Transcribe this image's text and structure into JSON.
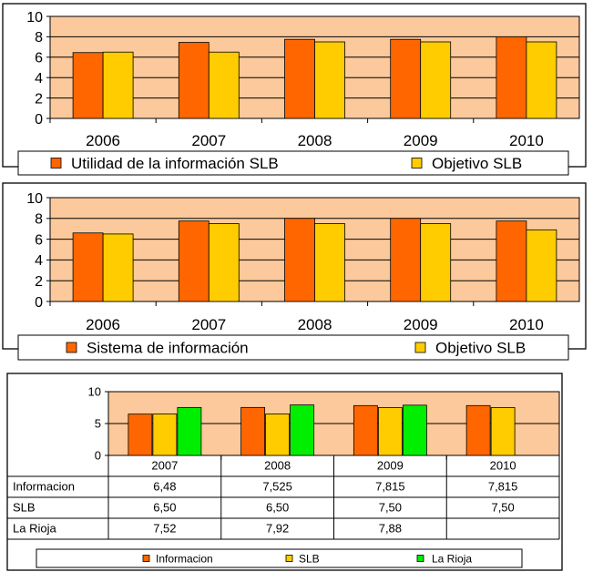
{
  "colors": {
    "plot_bg": "#fbc99b",
    "primary": "#ff6600",
    "secondary": "#ffcc00",
    "tertiary": "#00ee00",
    "grid": "#000000"
  },
  "chart_data": [
    {
      "type": "bar",
      "categories": [
        "2006",
        "2007",
        "2008",
        "2009",
        "2010"
      ],
      "series": [
        {
          "name": "Utilidad de la información SLB",
          "color": "#ff6600",
          "values": [
            6.45,
            7.45,
            7.75,
            7.75,
            8.0
          ]
        },
        {
          "name": "Objetivo SLB",
          "color": "#ffcc00",
          "values": [
            6.5,
            6.5,
            7.5,
            7.5,
            7.5
          ]
        }
      ],
      "yticks": [
        "0",
        "2",
        "4",
        "6",
        "8",
        "10"
      ],
      "ylim": [
        0,
        10
      ],
      "grid": true,
      "legend": "bottom"
    },
    {
      "type": "bar",
      "categories": [
        "2006",
        "2007",
        "2008",
        "2009",
        "2010"
      ],
      "series": [
        {
          "name": "Sistema de información",
          "color": "#ff6600",
          "values": [
            6.6,
            7.75,
            8.0,
            8.0,
            7.75
          ]
        },
        {
          "name": "Objetivo SLB",
          "color": "#ffcc00",
          "values": [
            6.5,
            7.5,
            7.5,
            7.5,
            6.9
          ]
        }
      ],
      "yticks": [
        "0",
        "2",
        "4",
        "6",
        "8",
        "10"
      ],
      "ylim": [
        0,
        10
      ],
      "grid": true,
      "legend": "bottom"
    },
    {
      "type": "bar",
      "categories": [
        "2007",
        "2008",
        "2009",
        "2010"
      ],
      "series": [
        {
          "name": "Informacion",
          "color": "#ff6600",
          "values": [
            6.48,
            7.525,
            7.815,
            7.815
          ],
          "labels": [
            "6,48",
            "7,525",
            "7,815",
            "7,815"
          ]
        },
        {
          "name": "SLB",
          "color": "#ffcc00",
          "values": [
            6.5,
            6.5,
            7.5,
            7.5
          ],
          "labels": [
            "6,50",
            "6,50",
            "7,50",
            "7,50"
          ]
        },
        {
          "name": "La Rioja",
          "color": "#00ee00",
          "values": [
            7.52,
            7.92,
            7.88,
            null
          ],
          "labels": [
            "7,52",
            "7,92",
            "7,88",
            ""
          ]
        }
      ],
      "yticks": [
        "0",
        "5",
        "10"
      ],
      "ylim": [
        0,
        10
      ],
      "grid": true,
      "legend": "bottom",
      "data_table": true
    }
  ]
}
